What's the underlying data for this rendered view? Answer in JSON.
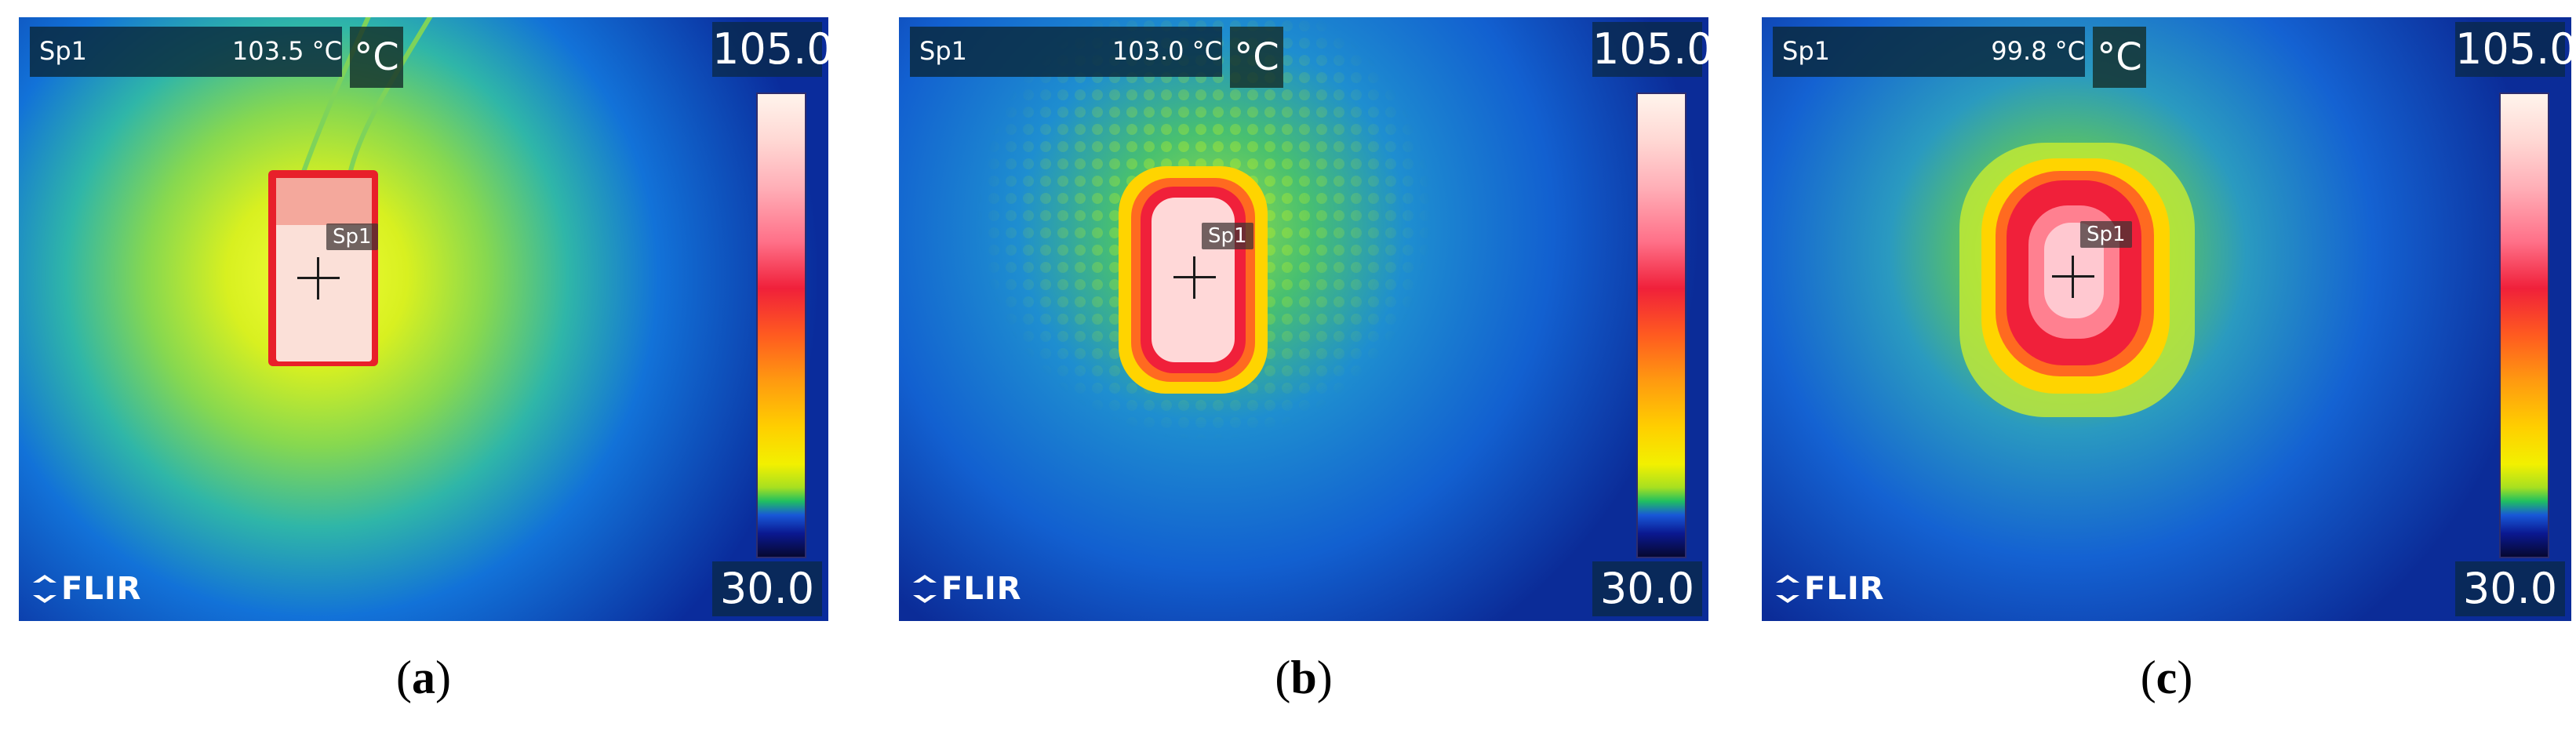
{
  "panels": [
    {
      "caption_letter": "a",
      "spot_name": "Sp1",
      "spot_temp": "103.5 °C",
      "unit": "°C",
      "scale_max": "105.0",
      "scale_min": "30.0",
      "marker_label": "Sp1",
      "brand": "FLIR"
    },
    {
      "caption_letter": "b",
      "spot_name": "Sp1",
      "spot_temp": "103.0 °C",
      "unit": "°C",
      "scale_max": "105.0",
      "scale_min": "30.0",
      "marker_label": "Sp1",
      "brand": "FLIR"
    },
    {
      "caption_letter": "c",
      "spot_name": "Sp1",
      "spot_temp": "99.8 °C",
      "unit": "°C",
      "scale_max": "105.0",
      "scale_min": "30.0",
      "marker_label": "Sp1",
      "brand": "FLIR"
    }
  ]
}
